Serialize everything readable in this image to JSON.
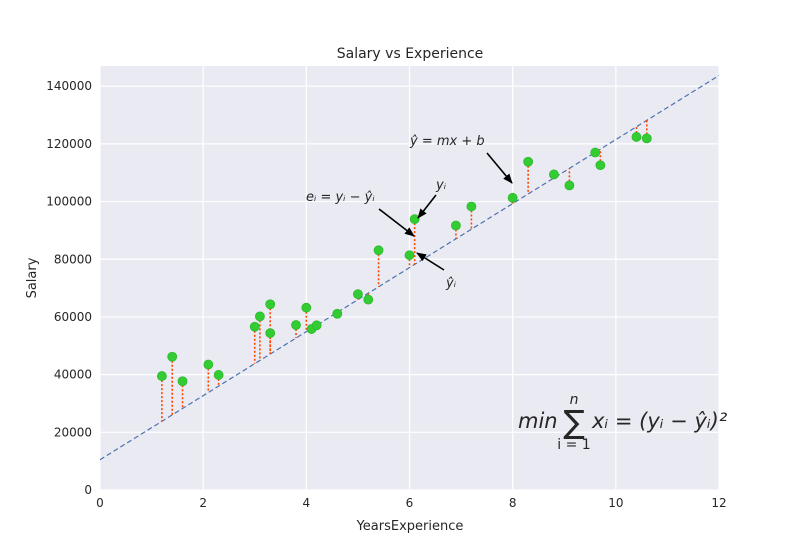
{
  "chart_data": {
    "type": "scatter",
    "title": "Salary vs Experience",
    "xlabel": "YearsExperience",
    "ylabel": "Salary",
    "xlim": [
      0,
      12
    ],
    "ylim": [
      0,
      147000
    ],
    "xticks": [
      "0",
      "2",
      "4",
      "6",
      "8",
      "10",
      "12"
    ],
    "yticks": [
      "0",
      "20000",
      "40000",
      "60000",
      "80000",
      "100000",
      "120000",
      "140000"
    ],
    "grid": true,
    "point_color": "#33cc33",
    "line_color": "#4c72b0",
    "residual_color": "#ff4500",
    "background_color": "#eaeaf2",
    "regression_line": {
      "intercept": 10500,
      "slope": 11100
    },
    "points": [
      {
        "x": 1.2,
        "y": 39500
      },
      {
        "x": 1.4,
        "y": 46200
      },
      {
        "x": 1.6,
        "y": 37700
      },
      {
        "x": 2.1,
        "y": 43500
      },
      {
        "x": 2.3,
        "y": 39900
      },
      {
        "x": 3.0,
        "y": 56600
      },
      {
        "x": 3.1,
        "y": 60200
      },
      {
        "x": 3.3,
        "y": 54400
      },
      {
        "x": 3.3,
        "y": 64400
      },
      {
        "x": 3.8,
        "y": 57200
      },
      {
        "x": 4.0,
        "y": 63200
      },
      {
        "x": 4.1,
        "y": 55800
      },
      {
        "x": 4.2,
        "y": 57100
      },
      {
        "x": 4.6,
        "y": 61100
      },
      {
        "x": 5.0,
        "y": 67900
      },
      {
        "x": 5.2,
        "y": 66000
      },
      {
        "x": 5.4,
        "y": 83100
      },
      {
        "x": 6.0,
        "y": 81400
      },
      {
        "x": 6.1,
        "y": 93900
      },
      {
        "x": 6.9,
        "y": 91700
      },
      {
        "x": 7.2,
        "y": 98300
      },
      {
        "x": 8.0,
        "y": 101300
      },
      {
        "x": 8.3,
        "y": 113800
      },
      {
        "x": 8.8,
        "y": 109400
      },
      {
        "x": 9.1,
        "y": 105600
      },
      {
        "x": 9.6,
        "y": 117000
      },
      {
        "x": 9.7,
        "y": 112600
      },
      {
        "x": 10.4,
        "y": 122400
      },
      {
        "x": 10.6,
        "y": 121900
      }
    ],
    "annotations": {
      "line_eq": "ŷ = mx + b",
      "error": "eᵢ = yᵢ − ŷᵢ",
      "y_i": "yᵢ",
      "y_hat_i": "ŷᵢ",
      "formula_min": "min",
      "formula_sigma": "∑",
      "formula_top": "n",
      "formula_bottom": "i = 1",
      "formula_body": "xᵢ = (yᵢ − ŷᵢ)²"
    }
  }
}
